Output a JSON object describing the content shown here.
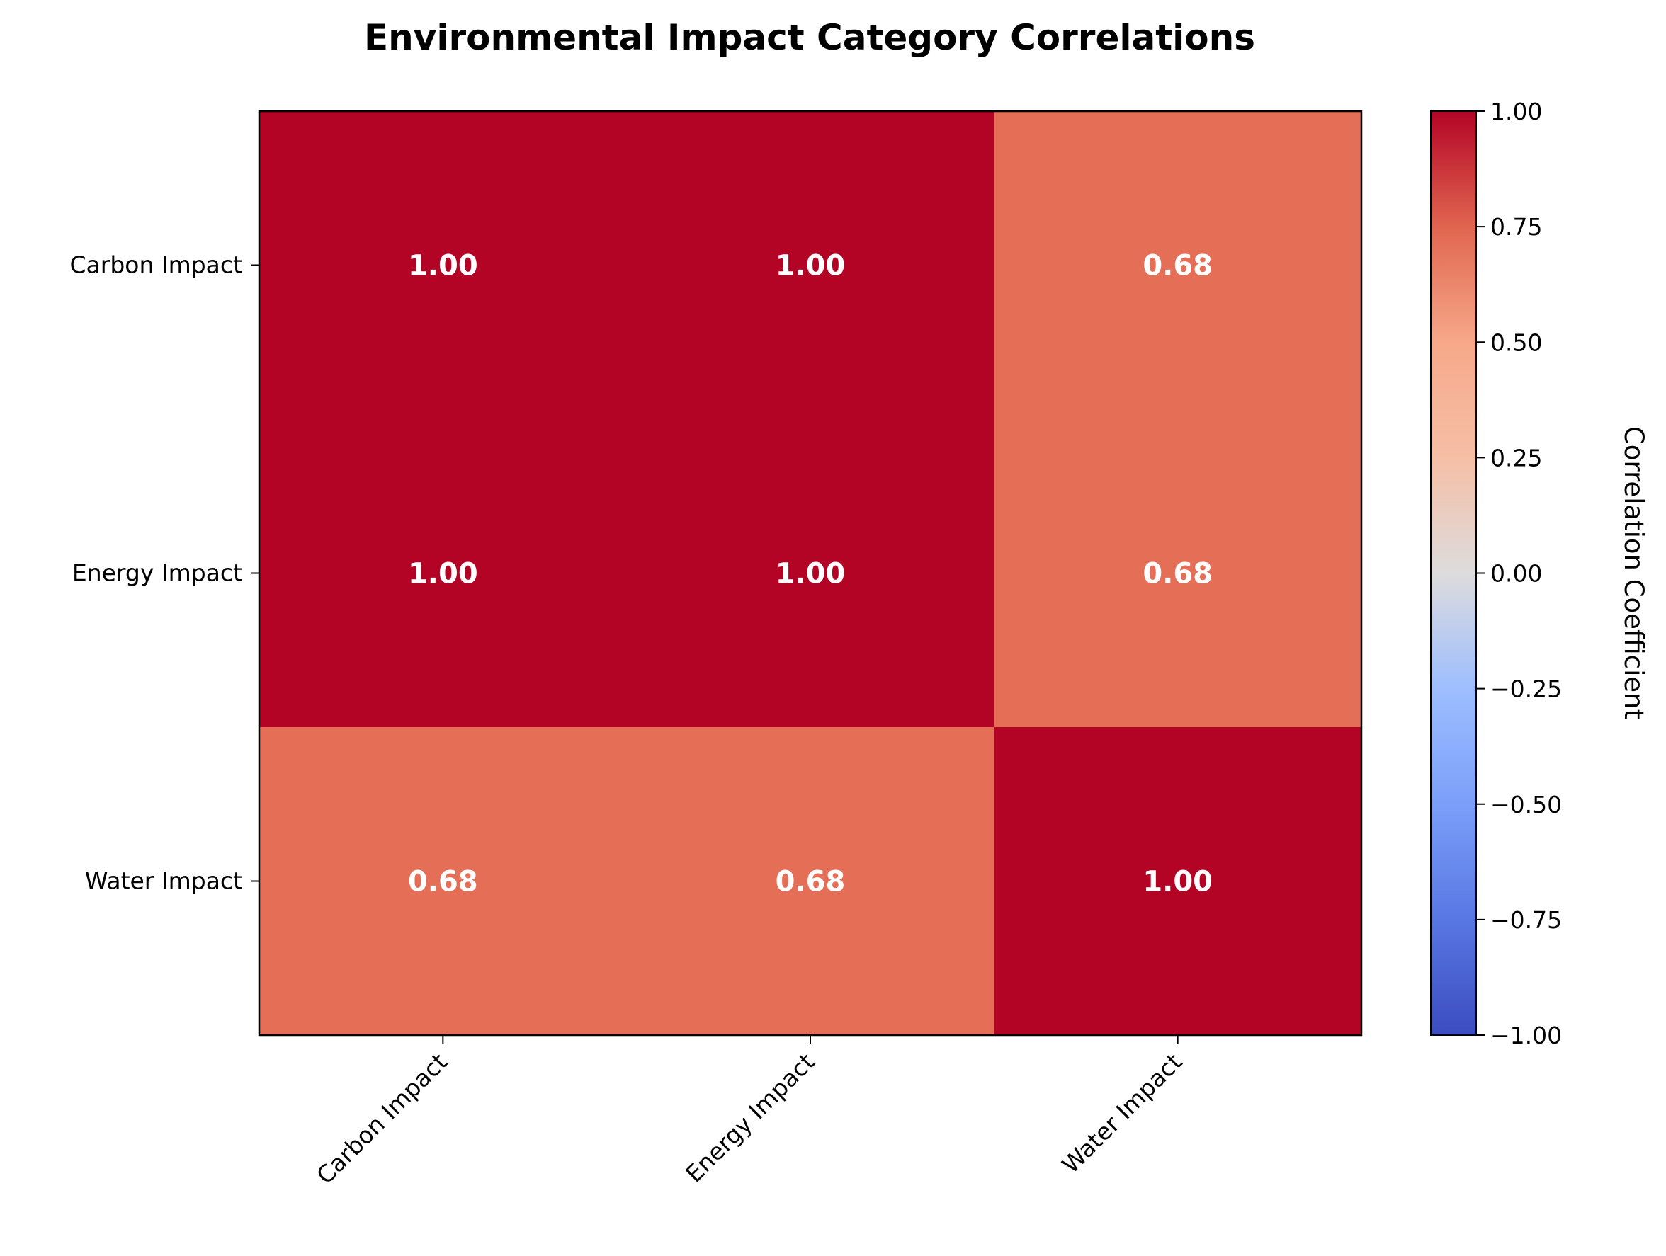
{
  "chart_data": {
    "type": "heatmap",
    "title": "Environmental Impact Category Correlations",
    "x_categories": [
      "Carbon Impact",
      "Energy Impact",
      "Water Impact"
    ],
    "y_categories": [
      "Carbon Impact",
      "Energy Impact",
      "Water Impact"
    ],
    "values": [
      [
        1.0,
        1.0,
        0.68
      ],
      [
        1.0,
        1.0,
        0.68
      ],
      [
        0.68,
        0.68,
        1.0
      ]
    ],
    "value_format": "0.00",
    "colormap": "coolwarm",
    "vmin": -1.0,
    "vmax": 1.0,
    "colorbar": {
      "label": "Correlation Coefficient",
      "ticks": [
        1.0,
        0.75,
        0.5,
        0.25,
        0.0,
        -0.25,
        -0.5,
        -0.75,
        -1.0
      ],
      "tick_labels": [
        "1.00",
        "0.75",
        "0.50",
        "0.25",
        "0.00",
        "−0.25",
        "−0.50",
        "−0.75",
        "−1.00"
      ]
    },
    "colors": {
      "value_1_00": "#b40426",
      "value_0_68": "#e46e56",
      "cell_text": "#ffffff"
    }
  }
}
